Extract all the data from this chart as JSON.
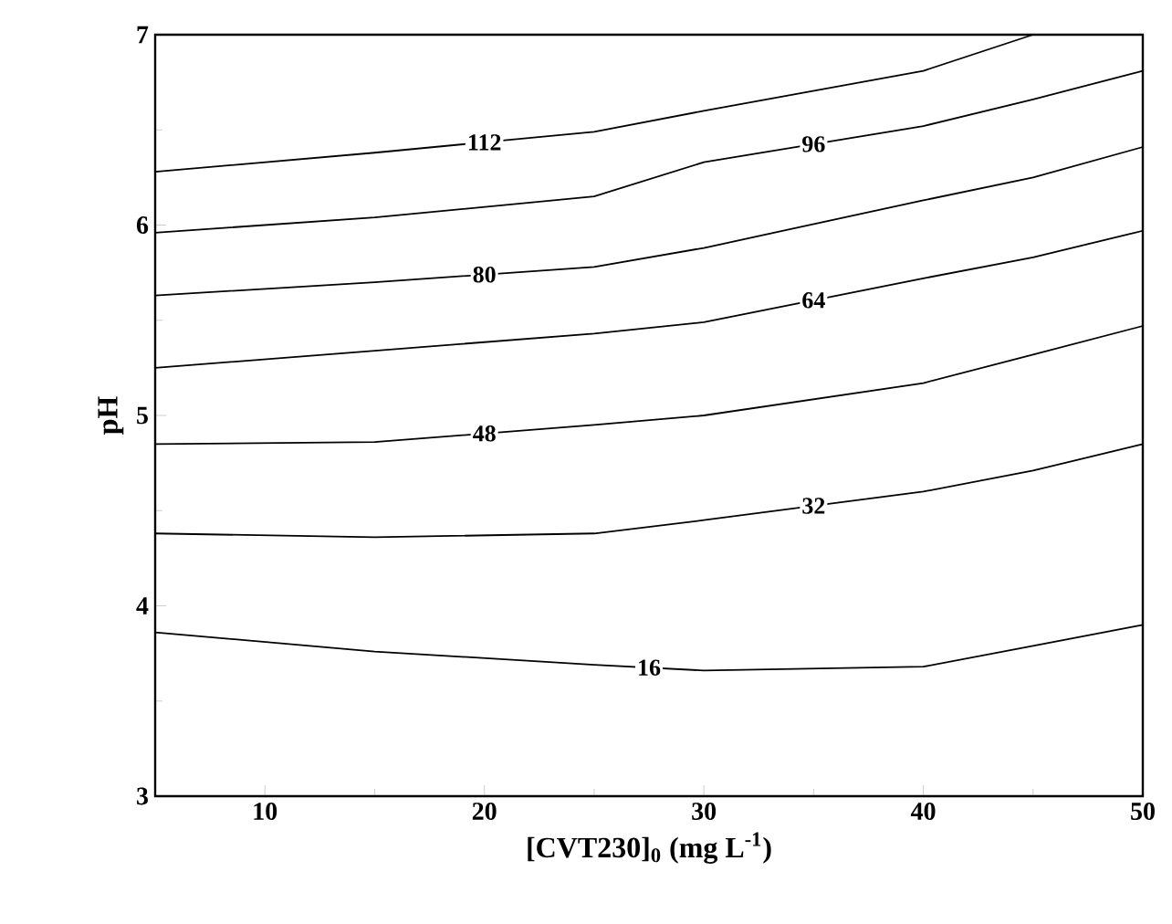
{
  "chart_data": {
    "type": "line",
    "xlabel": "[CVT230]$_{0}$ (mg L$^{-1}$)",
    "ylabel": "pH",
    "x": [
      5,
      15,
      25,
      30,
      40,
      45,
      50
    ],
    "series": [
      {
        "name": "16",
        "color": "#000000",
        "values": [
          3.86,
          3.76,
          3.69,
          3.66,
          3.68,
          3.79,
          3.9
        ]
      },
      {
        "name": "32",
        "color": "#000000",
        "values": [
          4.38,
          4.36,
          4.38,
          4.45,
          4.6,
          4.71,
          4.85
        ]
      },
      {
        "name": "48",
        "color": "#000000",
        "values": [
          4.85,
          4.86,
          4.95,
          5.0,
          5.17,
          5.32,
          5.47
        ]
      },
      {
        "name": "64",
        "color": "#000000",
        "values": [
          5.25,
          5.34,
          5.43,
          5.49,
          5.72,
          5.83,
          5.97
        ]
      },
      {
        "name": "80",
        "color": "#000000",
        "values": [
          5.63,
          5.7,
          5.78,
          5.88,
          6.13,
          6.25,
          6.41
        ]
      },
      {
        "name": "96",
        "color": "#000000",
        "values": [
          5.96,
          6.04,
          6.15,
          6.33,
          6.52,
          6.66,
          6.81
        ]
      },
      {
        "name": "112",
        "color": "#000000",
        "values": [
          6.28,
          6.38,
          6.49,
          6.6,
          6.81,
          7.0,
          null
        ]
      }
    ],
    "xlim": [
      5,
      50
    ],
    "ylim": [
      3,
      7
    ],
    "xticks": [
      10,
      20,
      30,
      40,
      50
    ],
    "yticks": [
      3,
      4,
      5,
      6,
      7
    ],
    "line_style": "solid"
  }
}
